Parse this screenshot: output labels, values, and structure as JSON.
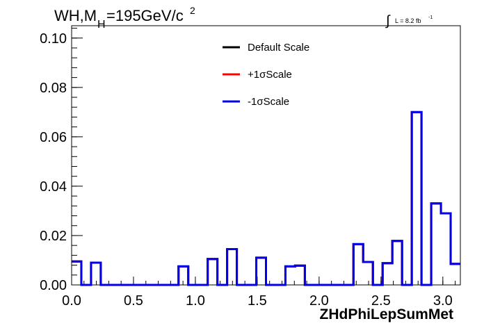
{
  "chart_data": {
    "type": "line",
    "step": true,
    "title_main": "WH,M",
    "title_sub": "H",
    "title_rest": "=195GeV/c",
    "title_sup": "2",
    "lumi_symbol": "∫",
    "lumi_text": "L = 8.2 fb",
    "lumi_sup": "-1",
    "xlabel": "ZHdPhiLepSumMet",
    "ylabel": "",
    "xlim": [
      0,
      3.1416
    ],
    "ylim": [
      0,
      0.105
    ],
    "x_ticks": [
      "0.0",
      "0.5",
      "1.0",
      "1.5",
      "2.0",
      "2.5",
      "3.0"
    ],
    "y_ticks": [
      "0.00",
      "0.02",
      "0.04",
      "0.06",
      "0.08",
      "0.10"
    ],
    "bin_edges": [
      0,
      0.0785,
      0.1571,
      0.2356,
      0.3142,
      0.3927,
      0.4712,
      0.5498,
      0.6283,
      0.7069,
      0.7854,
      0.8639,
      0.9425,
      1.021,
      1.0996,
      1.1781,
      1.2566,
      1.3352,
      1.4137,
      1.4923,
      1.5708,
      1.6493,
      1.7279,
      1.8064,
      1.885,
      1.9635,
      2.042,
      2.1206,
      2.1991,
      2.2777,
      2.3562,
      2.4347,
      2.5133,
      2.5918,
      2.6704,
      2.7489,
      2.8274,
      2.906,
      2.9845,
      3.0631,
      3.1416
    ],
    "legend_position": "top-center",
    "series": [
      {
        "name": "Default Scale",
        "color": "#000000",
        "values": [
          0.0095,
          0,
          0.009,
          0,
          0,
          0,
          0,
          0,
          0,
          0,
          0,
          0.0075,
          0,
          0,
          0.0105,
          0,
          0.0145,
          0,
          0,
          0.011,
          0,
          0,
          0.0075,
          0.0078,
          0,
          0,
          0,
          0,
          0,
          0.0165,
          0.0093,
          0,
          0.0088,
          0.0178,
          0,
          0.07,
          0,
          0.033,
          0.029,
          0.0085,
          0.0205
        ]
      },
      {
        "name": "+1σScale",
        "color": "#ff0000",
        "values": [
          0.0095,
          0,
          0.009,
          0,
          0,
          0,
          0,
          0,
          0,
          0,
          0,
          0.0075,
          0,
          0,
          0.0105,
          0,
          0.0145,
          0,
          0,
          0.011,
          0,
          0,
          0.0075,
          0.0078,
          0,
          0,
          0,
          0,
          0,
          0.0165,
          0.0093,
          0,
          0.0088,
          0.0178,
          0,
          0.07,
          0,
          0.033,
          0.029,
          0.0085,
          0.0205
        ]
      },
      {
        "name": "-1σScale",
        "color": "#0000ee",
        "values": [
          0.0095,
          0,
          0.009,
          0,
          0,
          0,
          0,
          0,
          0,
          0,
          0,
          0.0075,
          0,
          0,
          0.0105,
          0,
          0.0145,
          0,
          0,
          0.011,
          0,
          0,
          0.0075,
          0.0078,
          0,
          0,
          0,
          0,
          0,
          0.0165,
          0.0093,
          0,
          0.0088,
          0.0178,
          0,
          0.07,
          0,
          0.033,
          0.029,
          0.0085,
          0.0205
        ]
      }
    ]
  }
}
